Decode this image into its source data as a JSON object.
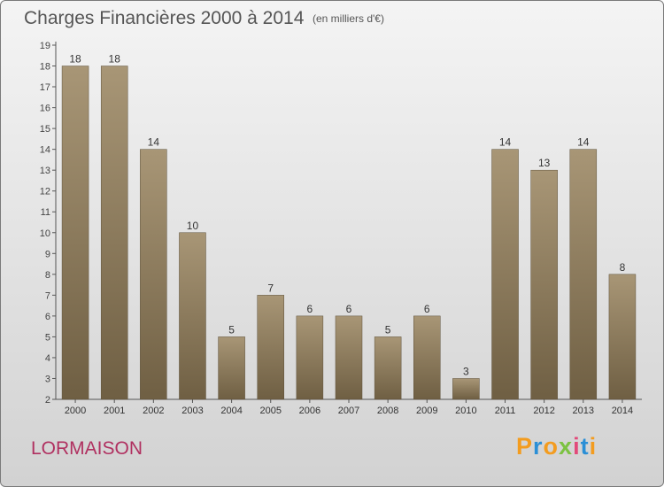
{
  "chart_data": {
    "type": "bar",
    "title": "Charges Financières 2000 à 2014",
    "subtitle": "(en milliers d'€)",
    "categories": [
      "2000",
      "2001",
      "2002",
      "2003",
      "2004",
      "2005",
      "2006",
      "2007",
      "2008",
      "2009",
      "2010",
      "2011",
      "2012",
      "2013",
      "2014"
    ],
    "values": [
      18,
      18,
      14,
      10,
      5,
      7,
      6,
      6,
      5,
      6,
      3,
      14,
      13,
      14,
      8
    ],
    "data_labels": [
      "18",
      "18",
      "14",
      "10",
      "5",
      "7",
      "6",
      "6",
      "5",
      "6",
      "3",
      "14",
      "13",
      "14",
      "8"
    ],
    "y_ticks": [
      "2",
      "3",
      "4",
      "5",
      "6",
      "7",
      "8",
      "9",
      "10",
      "11",
      "12",
      "13",
      "14",
      "15",
      "16",
      "17",
      "18",
      "19"
    ],
    "ylim": [
      2,
      19
    ],
    "grid": false,
    "bar_color_top": "#a89676",
    "bar_color_bottom": "#6f5f43"
  },
  "footer": {
    "commune": "LORMAISON",
    "logo_letters": [
      "P",
      "r",
      "o",
      "x",
      "i",
      "t",
      "i"
    ],
    "logo_colors": [
      "#f39c1f",
      "#2b8fd6",
      "#f39c1f",
      "#7cc242",
      "#e24a7a",
      "#2b8fd6",
      "#f39c1f"
    ]
  }
}
